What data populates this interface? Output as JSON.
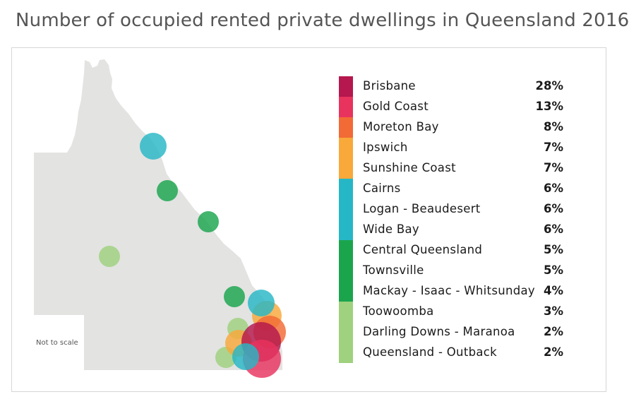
{
  "title": "Number of occupied rented private dwellings in Queensland 2016",
  "note": "Not to scale",
  "chart_data": {
    "type": "table",
    "title": "Number of occupied rented private dwellings in Queensland 2016",
    "legend_placement": "right",
    "groups": [
      {
        "color": "#b5174e",
        "regions": [
          {
            "name": "Brisbane",
            "value": 28
          }
        ]
      },
      {
        "color": "#e8335e",
        "regions": [
          {
            "name": "Gold Coast",
            "value": 13
          }
        ]
      },
      {
        "color": "#f26a35",
        "regions": [
          {
            "name": "Moreton Bay",
            "value": 8
          }
        ]
      },
      {
        "color": "#f9a83a",
        "regions": [
          {
            "name": "Ipswich",
            "value": 7
          },
          {
            "name": "Sunshine Coast",
            "value": 7
          }
        ]
      },
      {
        "color": "#26b7c6",
        "regions": [
          {
            "name": "Cairns",
            "value": 6
          },
          {
            "name": "Logan - Beaudesert",
            "value": 6
          },
          {
            "name": "Wide Bay",
            "value": 6
          }
        ]
      },
      {
        "color": "#1aa54d",
        "regions": [
          {
            "name": "Central Queensland",
            "value": 5
          },
          {
            "name": "Townsville",
            "value": 5
          },
          {
            "name": "Mackay - Isaac - Whitsunday",
            "value": 4
          }
        ]
      },
      {
        "color": "#9fd17e",
        "regions": [
          {
            "name": "Toowoomba",
            "value": 3
          },
          {
            "name": "Darling Downs - Maranoa",
            "value": 2
          },
          {
            "name": "Queensland - Outback",
            "value": 2
          }
        ]
      }
    ],
    "unit": "%"
  }
}
